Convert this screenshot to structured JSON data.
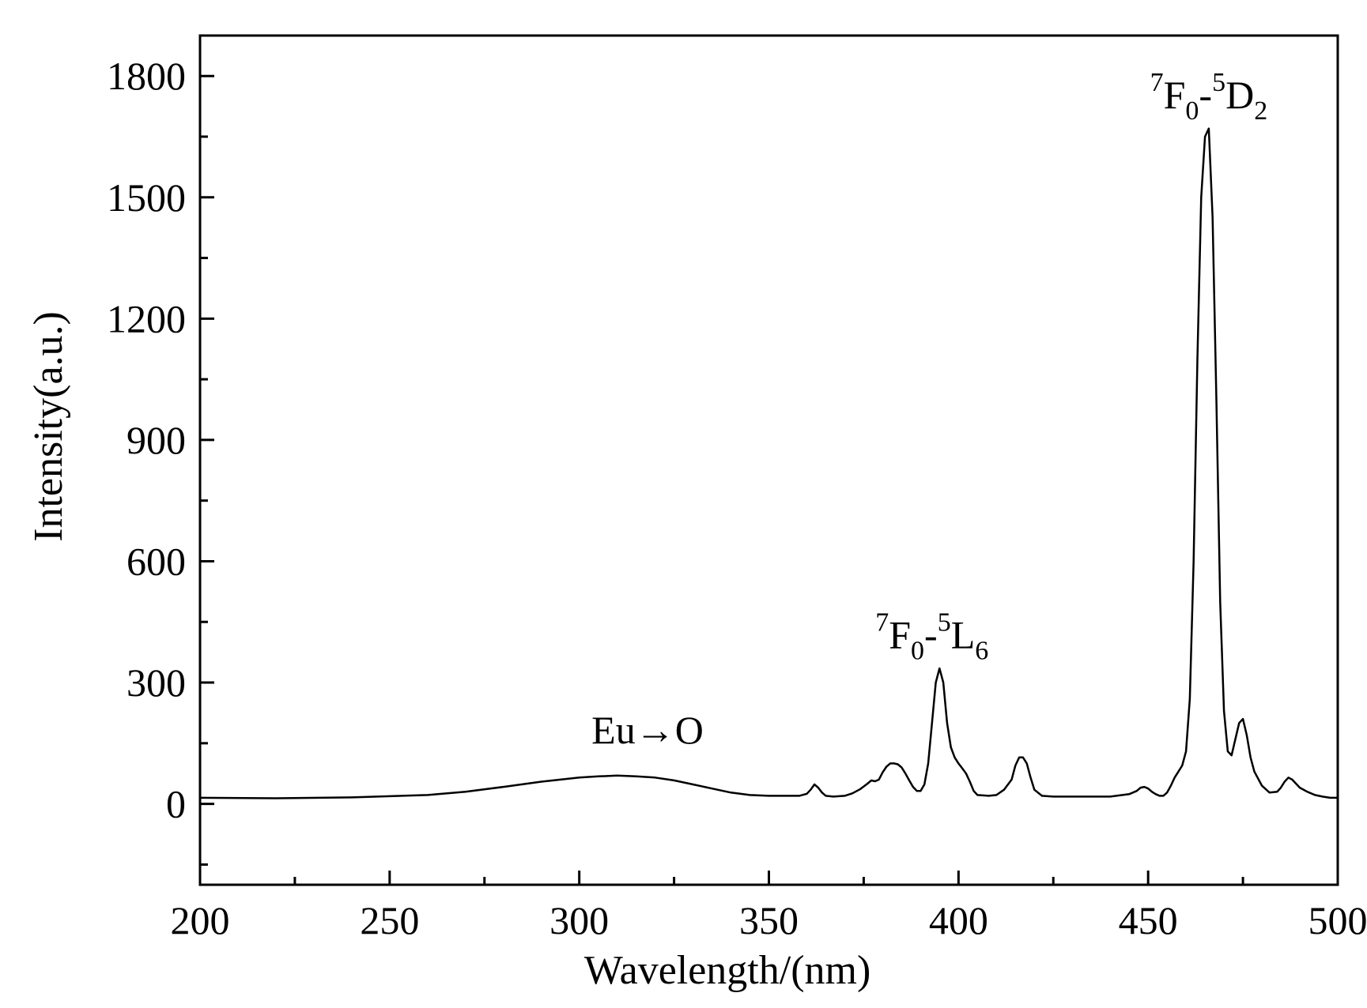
{
  "chart_data": {
    "type": "line",
    "xlabel": "Wavelength/(nm)",
    "ylabel": "Intensity(a.u.)",
    "xlim": [
      200,
      500
    ],
    "ylim": [
      -200,
      1900
    ],
    "x_ticks": [
      200,
      250,
      300,
      350,
      400,
      450,
      500
    ],
    "x_tick_labels": [
      "200",
      "250",
      "300",
      "350",
      "400",
      "450",
      "500"
    ],
    "y_ticks": [
      0,
      300,
      600,
      900,
      1200,
      1500,
      1800
    ],
    "y_tick_labels": [
      "0",
      "300",
      "600",
      "900",
      "1200",
      "1500",
      "1800"
    ],
    "grid": false,
    "line_color": "#000000",
    "series": [
      {
        "x": [
          200,
          220,
          240,
          260,
          270,
          280,
          290,
          300,
          305,
          310,
          315,
          320,
          325,
          330,
          335,
          340,
          345,
          350,
          355,
          358,
          360,
          361,
          362,
          363,
          364,
          365,
          367,
          370,
          372,
          374,
          376,
          377,
          378,
          379,
          380,
          381,
          382,
          383,
          384,
          385,
          386,
          387,
          388,
          389,
          390,
          391,
          392,
          393,
          394,
          395,
          396,
          397,
          398,
          399,
          400,
          401,
          402,
          403,
          404,
          405,
          408,
          410,
          412,
          414,
          415,
          416,
          417,
          418,
          419,
          420,
          422,
          425,
          430,
          440,
          445,
          447,
          448,
          449,
          450,
          451,
          452,
          453,
          454,
          455,
          456,
          457,
          458,
          459,
          460,
          461,
          462,
          463,
          464,
          465,
          466,
          467,
          468,
          469,
          470,
          471,
          472,
          473,
          474,
          475,
          476,
          477,
          478,
          480,
          482,
          484,
          485,
          486,
          487,
          488,
          489,
          490,
          492,
          494,
          496,
          498,
          500
        ],
        "y": [
          15,
          14,
          16,
          22,
          30,
          42,
          55,
          65,
          68,
          70,
          68,
          65,
          58,
          48,
          38,
          28,
          22,
          20,
          20,
          20,
          25,
          35,
          48,
          40,
          28,
          20,
          18,
          20,
          26,
          36,
          50,
          58,
          56,
          60,
          78,
          92,
          100,
          100,
          98,
          90,
          75,
          58,
          42,
          32,
          32,
          48,
          100,
          200,
          300,
          335,
          300,
          200,
          140,
          115,
          100,
          88,
          75,
          55,
          32,
          22,
          20,
          22,
          35,
          60,
          95,
          115,
          115,
          100,
          65,
          35,
          20,
          18,
          18,
          18,
          24,
          32,
          40,
          42,
          38,
          30,
          24,
          20,
          20,
          28,
          45,
          65,
          80,
          95,
          130,
          260,
          600,
          1100,
          1500,
          1650,
          1670,
          1450,
          1000,
          500,
          230,
          130,
          120,
          160,
          200,
          210,
          170,
          115,
          80,
          45,
          28,
          30,
          40,
          55,
          65,
          60,
          50,
          40,
          30,
          22,
          18,
          15,
          15
        ]
      }
    ],
    "annotations": [
      {
        "id": "eu-o",
        "text": "Eu→O",
        "x": 318,
        "y": 150
      },
      {
        "id": "f0-l6",
        "sup1": "7",
        "main1": "F",
        "sub1": "0",
        "mid": "-",
        "sup2": "5",
        "main2": "L",
        "sub2": "6",
        "x": 393,
        "y": 385
      },
      {
        "id": "f0-d2",
        "sup1": "7",
        "main1": "F",
        "sub1": "0",
        "mid": "-",
        "sup2": "5",
        "main2": "D",
        "sub2": "2",
        "x": 466,
        "y": 1720
      }
    ]
  }
}
